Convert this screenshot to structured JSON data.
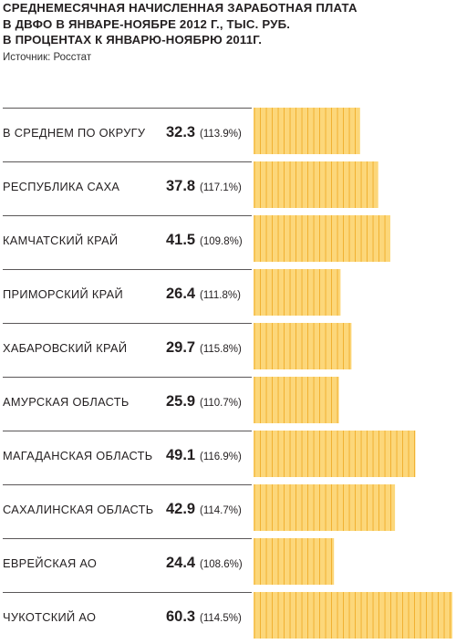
{
  "title": {
    "lines": [
      "СРЕДНЕМЕСЯЧНАЯ НАЧИСЛЕННАЯ ЗАРАБОТНАЯ ПЛАТА",
      "В ДВФО В ЯНВАРЕ-НОЯБРЕ 2012 Г., ТЫС. РУБ.",
      "В ПРОЦЕНТАХ К ЯНВАРЮ-НОЯБРЮ 2011Г."
    ]
  },
  "source": "Источник: Росстат",
  "chart_data": {
    "type": "bar",
    "orientation": "horizontal",
    "title": "СРЕДНЕМЕСЯЧНАЯ НАЧИСЛЕННАЯ ЗАРАБОТНАЯ ПЛАТА В ДВФО В ЯНВАРЕ-НОЯБРЕ 2012 Г., ТЫС. РУБ. В ПРОЦЕНТАХ К ЯНВАРЮ-НОЯБРЮ 2011Г.",
    "categories": [
      "В СРЕДНЕМ ПО ОКРУГУ",
      "РЕСПУБЛИКА САХА",
      "КАМЧАТСКИЙ КРАЙ",
      "ПРИМОРСКИЙ КРАЙ",
      "ХАБАРОВСКИЙ КРАЙ",
      "АМУРСКАЯ ОБЛАСТЬ",
      "МАГАДАНСКАЯ ОБЛАСТЬ",
      "САХАЛИНСКАЯ ОБЛАСТЬ",
      "ЕВРЕЙСКАЯ АО",
      "ЧУКОТСКИЙ АО"
    ],
    "values": [
      32.3,
      37.8,
      41.5,
      26.4,
      29.7,
      25.9,
      49.1,
      42.9,
      24.4,
      60.3
    ],
    "value_labels": [
      "32.3",
      "37.8",
      "41.5",
      "26.4",
      "29.7",
      "25.9",
      "49.1",
      "42.9",
      "24.4",
      "60.3"
    ],
    "percent_labels": [
      "(113.9%)",
      "(117.1%)",
      "(109.8%)",
      "(111.8%)",
      "(115.8%)",
      "(110.7%)",
      "(116.9%)",
      "(114.7%)",
      "(108.6%)",
      "(114.5%)"
    ],
    "xlim": [
      0,
      60.3
    ],
    "grid": false,
    "legend": "none"
  },
  "colors": {
    "bar": "#fcd77a",
    "bar_stripe": "#f0ad2a",
    "separator": "#231f20"
  }
}
